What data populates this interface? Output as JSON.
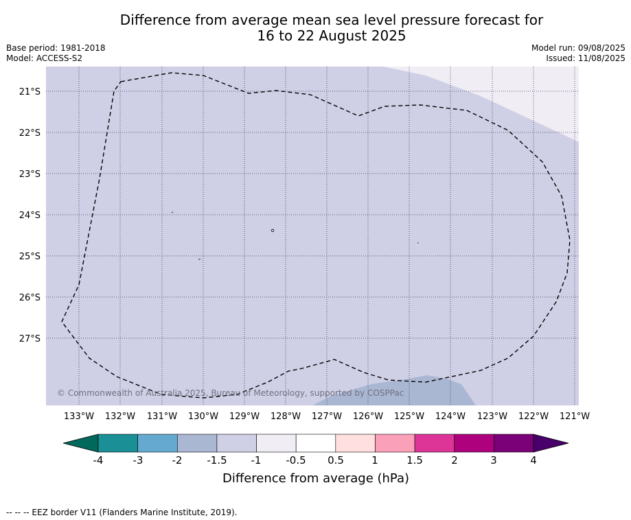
{
  "title_line1": "Difference from average mean sea level pressure forecast for",
  "title_line2": "16 to 22 August 2025",
  "base_period": "Base period: 1981-2018",
  "model": "Model: ACCESS-S2",
  "model_run": "Model run: 09/08/2025",
  "issued": "Issued: 11/08/2025",
  "copyright": "© Commonwealth of Australia 2025, Bureau of Meteorology, supported by COSPPac",
  "footnote": "--  --  -- EEZ border V11 (Flanders Marine Institute, 2019).",
  "lat_labels": [
    "21°S",
    "22°S",
    "23°S",
    "24°S",
    "25°S",
    "26°S",
    "27°S"
  ],
  "lon_labels": [
    "133°W",
    "132°W",
    "131°W",
    "130°W",
    "129°W",
    "128°W",
    "127°W",
    "126°W",
    "125°W",
    "124°W",
    "123°W",
    "122°W",
    "121°W"
  ],
  "colorbar": {
    "label": "Difference from average (hPa)",
    "ticks": [
      "-4",
      "-3",
      "-2",
      "-1.5",
      "-1",
      "-0.5",
      "0.5",
      "1",
      "1.5",
      "2",
      "3",
      "4"
    ],
    "colors": [
      "#1a8f96",
      "#66a9d0",
      "#aab7d3",
      "#cfd0e5",
      "#f1edf5",
      "#ffffff",
      "#ffdfdf",
      "#fba0b9",
      "#dd3497",
      "#ae017e",
      "#7a0177"
    ],
    "under_color": "#00695c",
    "over_color": "#49006a"
  },
  "field_colors": {
    "main": "#cfd0e5",
    "light": "#f1edf5",
    "darker": "#aab7d3"
  }
}
